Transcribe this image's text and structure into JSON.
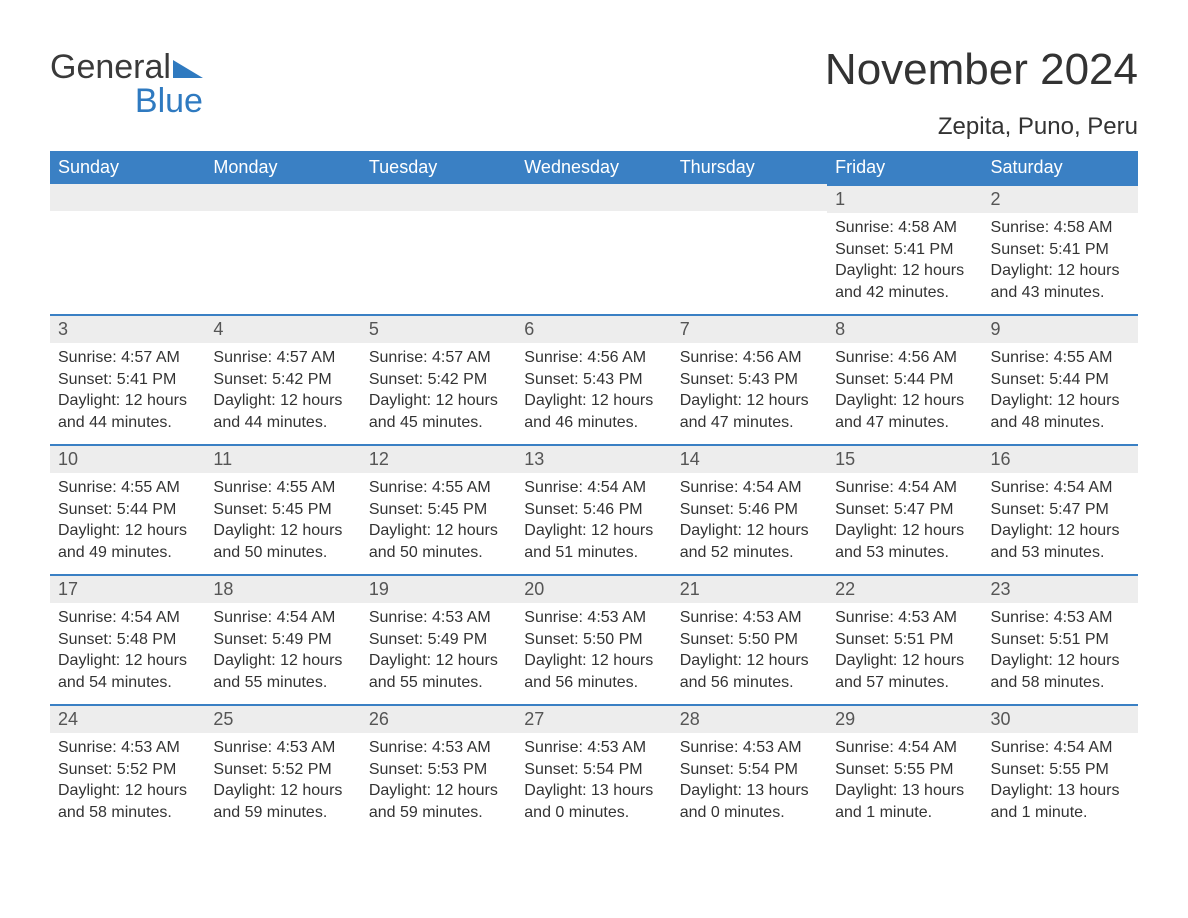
{
  "logo": {
    "general": "General",
    "blue": "Blue"
  },
  "title": "November 2024",
  "location": "Zepita, Puno, Peru",
  "colors": {
    "header_bg": "#3a80c4",
    "header_text": "#ffffff",
    "daynum_bg": "#ededed",
    "daynum_text": "#555555",
    "body_text": "#333333",
    "rule": "#3a80c4",
    "logo_blue": "#2f7ac0",
    "page_bg": "#ffffff"
  },
  "fonts": {
    "month_title_pt": 44,
    "location_pt": 24,
    "weekday_pt": 18,
    "daynum_pt": 18,
    "body_pt": 16
  },
  "layout": {
    "columns": 7,
    "rows": 5,
    "first_weekday": "Sunday",
    "leading_blanks": 5
  },
  "weekday_labels": [
    "Sunday",
    "Monday",
    "Tuesday",
    "Wednesday",
    "Thursday",
    "Friday",
    "Saturday"
  ],
  "labels": {
    "sunrise": "Sunrise:",
    "sunset": "Sunset:",
    "daylight": "Daylight:"
  },
  "days": [
    {
      "n": 1,
      "sunrise": "4:58 AM",
      "sunset": "5:41 PM",
      "daylight": "12 hours and 42 minutes."
    },
    {
      "n": 2,
      "sunrise": "4:58 AM",
      "sunset": "5:41 PM",
      "daylight": "12 hours and 43 minutes."
    },
    {
      "n": 3,
      "sunrise": "4:57 AM",
      "sunset": "5:41 PM",
      "daylight": "12 hours and 44 minutes."
    },
    {
      "n": 4,
      "sunrise": "4:57 AM",
      "sunset": "5:42 PM",
      "daylight": "12 hours and 44 minutes."
    },
    {
      "n": 5,
      "sunrise": "4:57 AM",
      "sunset": "5:42 PM",
      "daylight": "12 hours and 45 minutes."
    },
    {
      "n": 6,
      "sunrise": "4:56 AM",
      "sunset": "5:43 PM",
      "daylight": "12 hours and 46 minutes."
    },
    {
      "n": 7,
      "sunrise": "4:56 AM",
      "sunset": "5:43 PM",
      "daylight": "12 hours and 47 minutes."
    },
    {
      "n": 8,
      "sunrise": "4:56 AM",
      "sunset": "5:44 PM",
      "daylight": "12 hours and 47 minutes."
    },
    {
      "n": 9,
      "sunrise": "4:55 AM",
      "sunset": "5:44 PM",
      "daylight": "12 hours and 48 minutes."
    },
    {
      "n": 10,
      "sunrise": "4:55 AM",
      "sunset": "5:44 PM",
      "daylight": "12 hours and 49 minutes."
    },
    {
      "n": 11,
      "sunrise": "4:55 AM",
      "sunset": "5:45 PM",
      "daylight": "12 hours and 50 minutes."
    },
    {
      "n": 12,
      "sunrise": "4:55 AM",
      "sunset": "5:45 PM",
      "daylight": "12 hours and 50 minutes."
    },
    {
      "n": 13,
      "sunrise": "4:54 AM",
      "sunset": "5:46 PM",
      "daylight": "12 hours and 51 minutes."
    },
    {
      "n": 14,
      "sunrise": "4:54 AM",
      "sunset": "5:46 PM",
      "daylight": "12 hours and 52 minutes."
    },
    {
      "n": 15,
      "sunrise": "4:54 AM",
      "sunset": "5:47 PM",
      "daylight": "12 hours and 53 minutes."
    },
    {
      "n": 16,
      "sunrise": "4:54 AM",
      "sunset": "5:47 PM",
      "daylight": "12 hours and 53 minutes."
    },
    {
      "n": 17,
      "sunrise": "4:54 AM",
      "sunset": "5:48 PM",
      "daylight": "12 hours and 54 minutes."
    },
    {
      "n": 18,
      "sunrise": "4:54 AM",
      "sunset": "5:49 PM",
      "daylight": "12 hours and 55 minutes."
    },
    {
      "n": 19,
      "sunrise": "4:53 AM",
      "sunset": "5:49 PM",
      "daylight": "12 hours and 55 minutes."
    },
    {
      "n": 20,
      "sunrise": "4:53 AM",
      "sunset": "5:50 PM",
      "daylight": "12 hours and 56 minutes."
    },
    {
      "n": 21,
      "sunrise": "4:53 AM",
      "sunset": "5:50 PM",
      "daylight": "12 hours and 56 minutes."
    },
    {
      "n": 22,
      "sunrise": "4:53 AM",
      "sunset": "5:51 PM",
      "daylight": "12 hours and 57 minutes."
    },
    {
      "n": 23,
      "sunrise": "4:53 AM",
      "sunset": "5:51 PM",
      "daylight": "12 hours and 58 minutes."
    },
    {
      "n": 24,
      "sunrise": "4:53 AM",
      "sunset": "5:52 PM",
      "daylight": "12 hours and 58 minutes."
    },
    {
      "n": 25,
      "sunrise": "4:53 AM",
      "sunset": "5:52 PM",
      "daylight": "12 hours and 59 minutes."
    },
    {
      "n": 26,
      "sunrise": "4:53 AM",
      "sunset": "5:53 PM",
      "daylight": "12 hours and 59 minutes."
    },
    {
      "n": 27,
      "sunrise": "4:53 AM",
      "sunset": "5:54 PM",
      "daylight": "13 hours and 0 minutes."
    },
    {
      "n": 28,
      "sunrise": "4:53 AM",
      "sunset": "5:54 PM",
      "daylight": "13 hours and 0 minutes."
    },
    {
      "n": 29,
      "sunrise": "4:54 AM",
      "sunset": "5:55 PM",
      "daylight": "13 hours and 1 minute."
    },
    {
      "n": 30,
      "sunrise": "4:54 AM",
      "sunset": "5:55 PM",
      "daylight": "13 hours and 1 minute."
    }
  ]
}
